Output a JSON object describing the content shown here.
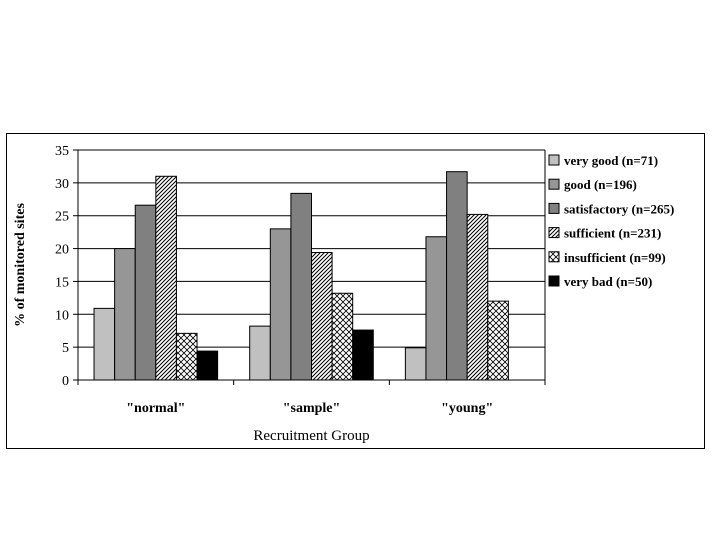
{
  "chart_data": {
    "type": "bar",
    "title": "",
    "xlabel": "Recruitment Group",
    "ylabel": "% of monitored sites",
    "ylim": [
      0,
      35
    ],
    "yticks": [
      0,
      5,
      10,
      15,
      20,
      25,
      30,
      35
    ],
    "grid": true,
    "legend_position": "right",
    "categories": [
      "\"normal\"",
      "\"sample\"",
      "\"young\""
    ],
    "series": [
      {
        "name": "very good (n=71)",
        "values": [
          10.9,
          8.2,
          4.9
        ],
        "color": "#c0c0c0",
        "pattern": "solid"
      },
      {
        "name": "good (n=196)",
        "values": [
          20.0,
          23.0,
          21.8
        ],
        "color": "#969696",
        "pattern": "solid"
      },
      {
        "name": "satisfactory (n=265)",
        "values": [
          26.6,
          28.4,
          31.7
        ],
        "color": "#808080",
        "pattern": "solid"
      },
      {
        "name": "sufficient (n=231)",
        "values": [
          31.0,
          19.4,
          25.2
        ],
        "color": "#ffffff",
        "pattern": "diagonal"
      },
      {
        "name": "insufficient (n=99)",
        "values": [
          7.1,
          13.2,
          12.0
        ],
        "color": "#ffffff",
        "pattern": "crosshatch"
      },
      {
        "name": "very bad (n=50)",
        "values": [
          4.4,
          7.6,
          null
        ],
        "color": "#000000",
        "pattern": "solid"
      }
    ]
  }
}
